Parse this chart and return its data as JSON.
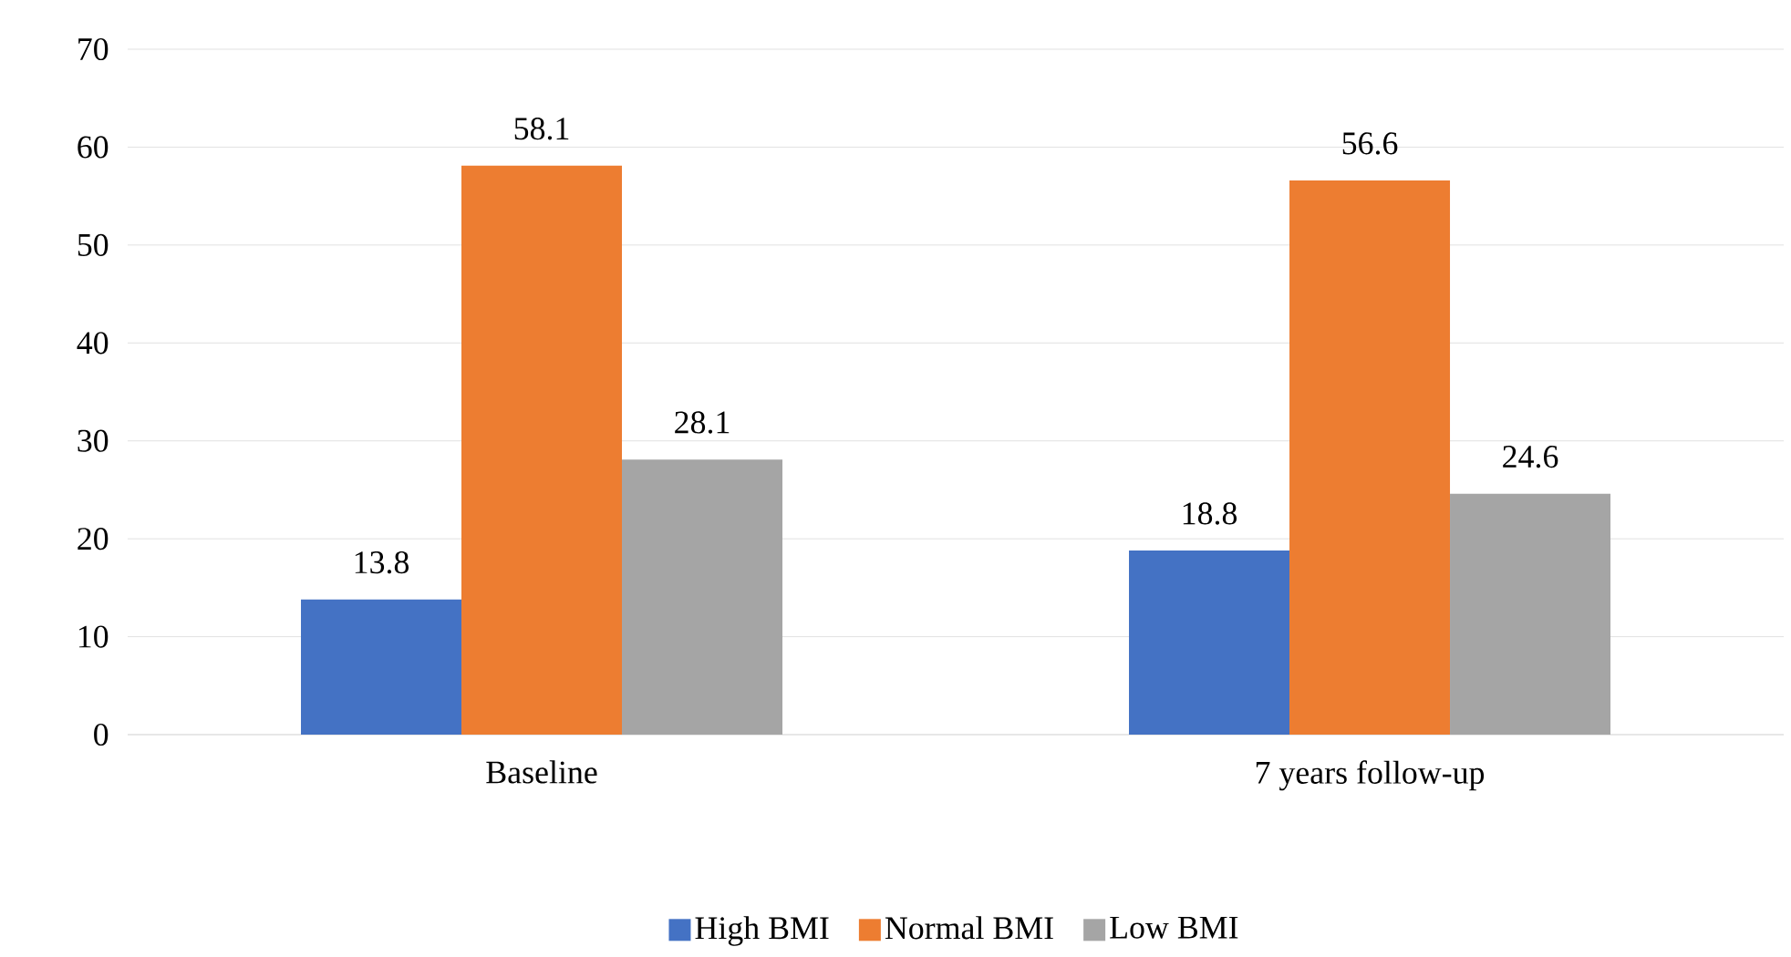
{
  "chart_data": {
    "type": "bar",
    "categories": [
      "Baseline",
      "7 years follow-up"
    ],
    "series": [
      {
        "name": "High BMI",
        "color": "#4472c4",
        "values": [
          13.8,
          18.8
        ]
      },
      {
        "name": "Normal BMI",
        "color": "#ed7d31",
        "values": [
          58.1,
          56.6
        ]
      },
      {
        "name": "Low BMI",
        "color": "#a5a5a5",
        "values": [
          28.1,
          24.6
        ]
      }
    ],
    "ylim": [
      0,
      70
    ],
    "yticks": [
      0,
      10,
      20,
      30,
      40,
      50,
      60,
      70
    ],
    "grid": "y",
    "legend": "bottom",
    "data_labels": true
  }
}
